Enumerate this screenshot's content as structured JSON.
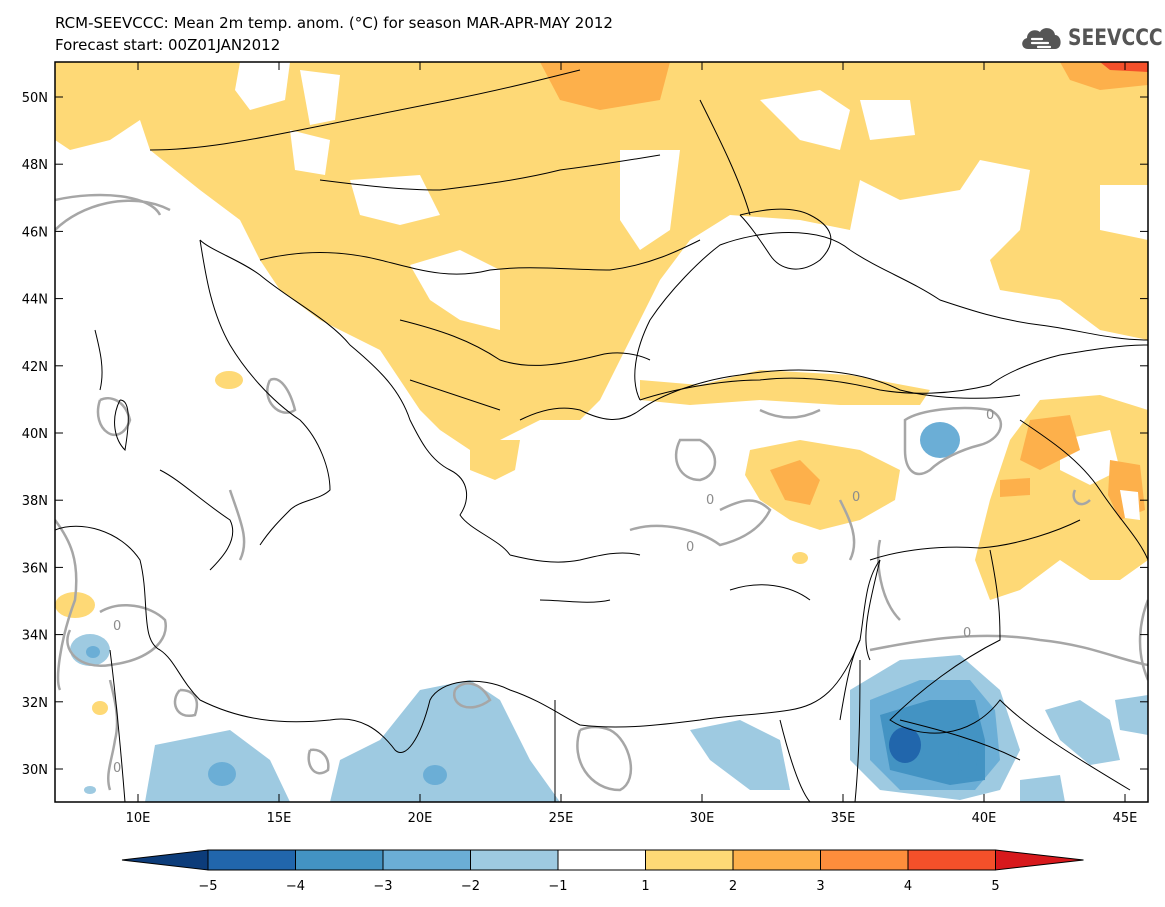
{
  "header": {
    "title_line1": "RCM-SEEVCCC: Mean 2m temp. anom. (°C) for season MAR-APR-MAY 2012",
    "title_line2": "Forecast start: 00Z01JAN2012"
  },
  "logo": {
    "text": "SEEVCCC",
    "icon": "cloud-icon",
    "color": "#555555"
  },
  "map": {
    "lat_ticks": [
      {
        "value": 50,
        "label": "50N"
      },
      {
        "value": 48,
        "label": "48N"
      },
      {
        "value": 46,
        "label": "46N"
      },
      {
        "value": 44,
        "label": "44N"
      },
      {
        "value": 42,
        "label": "42N"
      },
      {
        "value": 40,
        "label": "40N"
      },
      {
        "value": 38,
        "label": "38N"
      },
      {
        "value": 36,
        "label": "36N"
      },
      {
        "value": 34,
        "label": "34N"
      },
      {
        "value": 32,
        "label": "32N"
      },
      {
        "value": 30,
        "label": "30N"
      }
    ],
    "lon_ticks": [
      {
        "value": 10,
        "label": "10E"
      },
      {
        "value": 15,
        "label": "15E"
      },
      {
        "value": 20,
        "label": "20E"
      },
      {
        "value": 25,
        "label": "25E"
      },
      {
        "value": 30,
        "label": "30E"
      },
      {
        "value": 35,
        "label": "35E"
      },
      {
        "value": 40,
        "label": "40E"
      },
      {
        "value": 45,
        "label": "45E"
      }
    ],
    "contour_label": "0"
  },
  "colorbar": {
    "labels": [
      "−5",
      "−4",
      "−3",
      "−2",
      "−1",
      "1",
      "2",
      "3",
      "4",
      "5"
    ],
    "colors": [
      "#2166ac",
      "#4393c3",
      "#6baed6",
      "#9ecae1",
      "#ffffff",
      "#fed976",
      "#fdb04b",
      "#fd8d3c",
      "#f4502a",
      "#d7191c"
    ],
    "end_low_color": "#0c3c7a",
    "end_high_color": "#d7191c"
  }
}
